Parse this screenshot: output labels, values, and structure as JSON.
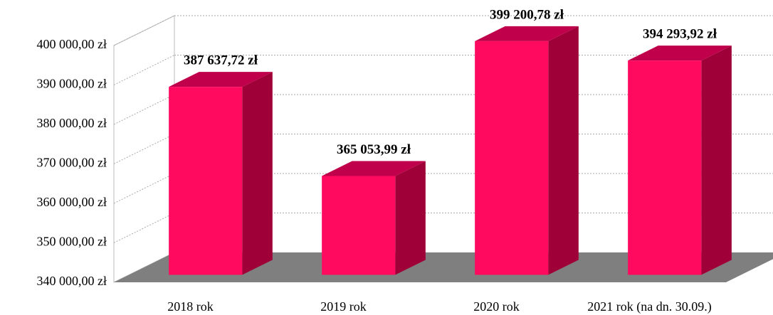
{
  "chart_data": {
    "type": "bar3d",
    "categories": [
      "2018 rok",
      "2019 rok",
      "2020 rok",
      "2021 rok (na dn. 30.09.)"
    ],
    "values": [
      387637.72,
      365053.99,
      399200.78,
      394293.92
    ],
    "value_labels": [
      "387 637,72 zł",
      "365 053,99 zł",
      "399 200,78 zł",
      "394 293,92 zł"
    ],
    "color": "#ff0a5e",
    "ylim": [
      340000,
      400000
    ],
    "yticks": [
      {
        "value": 340000,
        "label": "340 000,00 zł"
      },
      {
        "value": 350000,
        "label": "350 000,00 zł"
      },
      {
        "value": 360000,
        "label": "360 000,00 zł"
      },
      {
        "value": 370000,
        "label": "370 000,00 zł"
      },
      {
        "value": 380000,
        "label": "380 000,00 zł"
      },
      {
        "value": 390000,
        "label": "390 000,00 zł"
      },
      {
        "value": 400000,
        "label": "400 000,00 zł"
      }
    ],
    "grid": true
  }
}
